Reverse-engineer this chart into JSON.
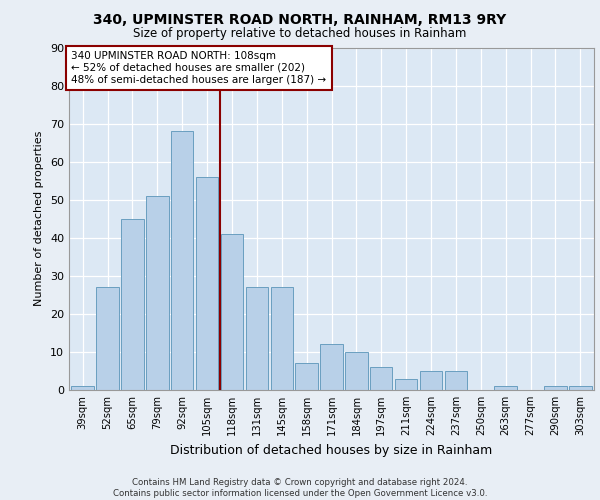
{
  "title1": "340, UPMINSTER ROAD NORTH, RAINHAM, RM13 9RY",
  "title2": "Size of property relative to detached houses in Rainham",
  "xlabel": "Distribution of detached houses by size in Rainham",
  "ylabel": "Number of detached properties",
  "categories": [
    "39sqm",
    "52sqm",
    "65sqm",
    "79sqm",
    "92sqm",
    "105sqm",
    "118sqm",
    "131sqm",
    "145sqm",
    "158sqm",
    "171sqm",
    "184sqm",
    "197sqm",
    "211sqm",
    "224sqm",
    "237sqm",
    "250sqm",
    "263sqm",
    "277sqm",
    "290sqm",
    "303sqm"
  ],
  "values": [
    1,
    27,
    45,
    51,
    68,
    56,
    41,
    27,
    27,
    7,
    12,
    10,
    6,
    3,
    5,
    5,
    0,
    1,
    0,
    1,
    1
  ],
  "bar_color": "#b8d0e8",
  "bar_edge_color": "#6a9fc0",
  "vline_x_idx": 5.5,
  "vline_color": "#8b0000",
  "annotation_line1": "340 UPMINSTER ROAD NORTH: 108sqm",
  "annotation_line2": "← 52% of detached houses are smaller (202)",
  "annotation_line3": "48% of semi-detached houses are larger (187) →",
  "annotation_box_edge": "#8b0000",
  "ylim": [
    0,
    90
  ],
  "yticks": [
    0,
    10,
    20,
    30,
    40,
    50,
    60,
    70,
    80,
    90
  ],
  "footer": "Contains HM Land Registry data © Crown copyright and database right 2024.\nContains public sector information licensed under the Open Government Licence v3.0.",
  "bg_color": "#e8eef5",
  "plot_bg_color": "#dce8f4"
}
